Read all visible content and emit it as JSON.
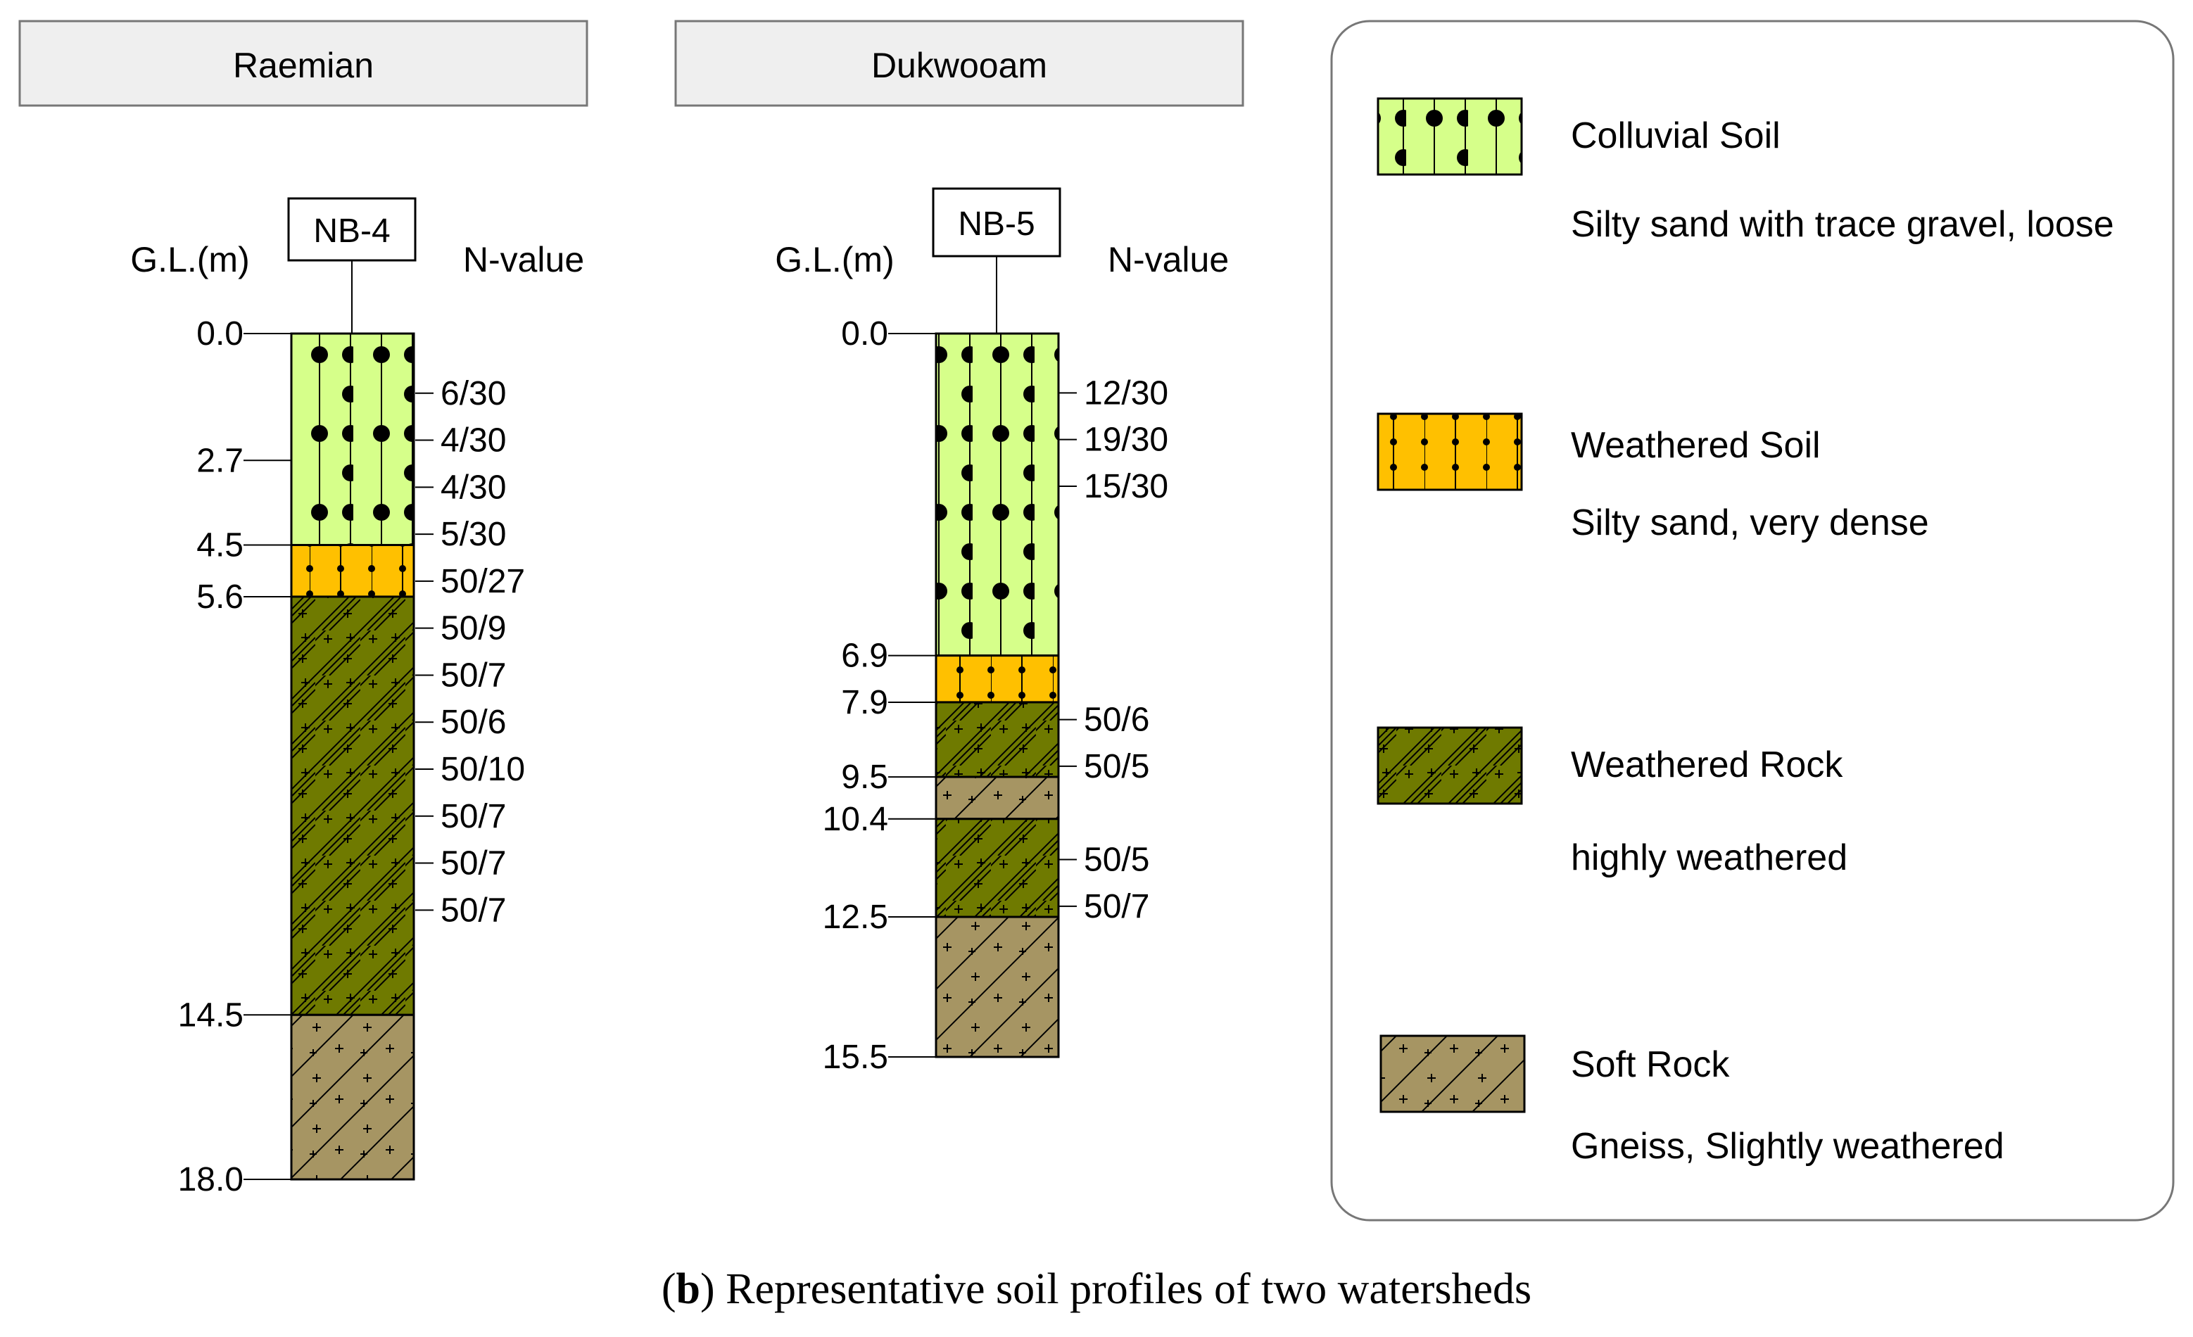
{
  "caption": {
    "letter": "b",
    "text": "Representative soil profiles of two watersheds"
  },
  "colors": {
    "colluvial": "#d6ff8a",
    "weathered_soil": "#ffc000",
    "weathered_rock": "#6f7a00",
    "soft_rock": "#a69563",
    "header_fill": "#efefef",
    "line": "#000000"
  },
  "profiles": [
    {
      "watershed": "Raemian",
      "borehole": "NB-4",
      "depth_header": "G.L.(m)",
      "nvalue_header": "N-value",
      "total_depth": 18.0,
      "depth_labels": [
        "0.0",
        "2.7",
        "4.5",
        "5.6",
        "14.5",
        "18.0"
      ],
      "layers": [
        {
          "type": "colluvial",
          "top": 0.0,
          "bottom": 4.5
        },
        {
          "type": "weathered_soil",
          "top": 4.5,
          "bottom": 5.6
        },
        {
          "type": "weathered_rock",
          "top": 5.6,
          "bottom": 14.5
        },
        {
          "type": "soft_rock",
          "top": 14.5,
          "bottom": 18.0
        }
      ],
      "n_values": [
        {
          "depth": 1.0,
          "label": "6/30"
        },
        {
          "depth": 2.0,
          "label": "4/30"
        },
        {
          "depth": 3.0,
          "label": "4/30"
        },
        {
          "depth": 4.0,
          "label": "5/30"
        },
        {
          "depth": 5.0,
          "label": "50/27"
        },
        {
          "depth": 6.0,
          "label": "50/9"
        },
        {
          "depth": 7.0,
          "label": "50/7"
        },
        {
          "depth": 8.0,
          "label": "50/6"
        },
        {
          "depth": 9.0,
          "label": "50/10"
        },
        {
          "depth": 10.0,
          "label": "50/7"
        },
        {
          "depth": 11.0,
          "label": "50/7"
        },
        {
          "depth": 12.0,
          "label": "50/7"
        }
      ]
    },
    {
      "watershed": "Dukwooam",
      "borehole": "NB-5",
      "depth_header": "G.L.(m)",
      "nvalue_header": "N-value",
      "total_depth": 15.5,
      "depth_labels": [
        "0.0",
        "6.9",
        "7.9",
        "9.5",
        "10.4",
        "12.5",
        "15.5"
      ],
      "layers": [
        {
          "type": "colluvial",
          "top": 0.0,
          "bottom": 6.9
        },
        {
          "type": "weathered_soil",
          "top": 6.9,
          "bottom": 7.9
        },
        {
          "type": "weathered_rock",
          "top": 7.9,
          "bottom": 9.5
        },
        {
          "type": "soft_rock",
          "top": 9.5,
          "bottom": 10.4
        },
        {
          "type": "weathered_rock",
          "top": 10.4,
          "bottom": 12.5
        },
        {
          "type": "soft_rock",
          "top": 12.5,
          "bottom": 15.5
        }
      ],
      "n_values": [
        {
          "depth": 1.0,
          "label": "12/30"
        },
        {
          "depth": 2.0,
          "label": "19/30"
        },
        {
          "depth": 3.0,
          "label": "15/30"
        },
        {
          "depth": 8.0,
          "label": "50/6"
        },
        {
          "depth": 9.0,
          "label": "50/5"
        },
        {
          "depth": 11.0,
          "label": "50/5"
        },
        {
          "depth": 12.0,
          "label": "50/7"
        }
      ]
    }
  ],
  "legend": [
    {
      "type": "colluvial",
      "name": "Colluvial Soil",
      "desc": "Silty sand with trace gravel, loose"
    },
    {
      "type": "weathered_soil",
      "name": "Weathered Soil",
      "desc": "Silty sand, very dense"
    },
    {
      "type": "weathered_rock",
      "name": "Weathered Rock",
      "desc": "highly weathered"
    },
    {
      "type": "soft_rock",
      "name": "Soft Rock",
      "desc": "Gneiss, Slightly weathered"
    }
  ]
}
